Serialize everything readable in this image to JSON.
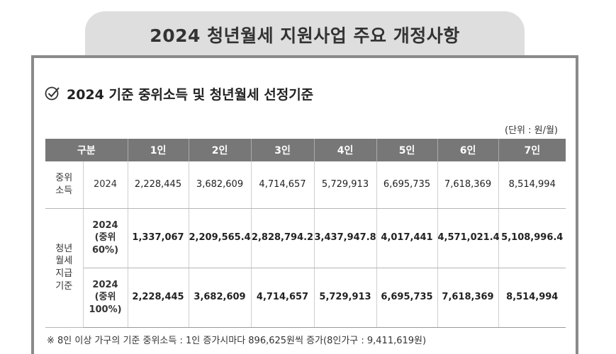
{
  "banner": {
    "title": "2024 청년월세 지원사업 주요 개정사항"
  },
  "section": {
    "icon": "check-circle-icon",
    "title": "2024 기준 중위소득 및 청년월세 선정기준"
  },
  "unit_note": "(단위 : 원/월)",
  "table": {
    "header": {
      "category": "구분",
      "columns": [
        "1인",
        "2인",
        "3인",
        "4인",
        "5인",
        "6인",
        "7인"
      ]
    },
    "income": {
      "label": "중위\n소득",
      "year": "2024",
      "values": [
        "2,228,445",
        "3,682,609",
        "4,714,657",
        "5,729,913",
        "6,695,735",
        "7,618,369",
        "8,514,994"
      ]
    },
    "rent": {
      "label": "청년\n월세\n지급\n기준",
      "rows": [
        {
          "sub": "2024\n(중위\n60%)",
          "values": [
            "1,337,067",
            "2,209,565.4",
            "2,828,794.2",
            "3,437,947.8",
            "4,017,441",
            "4,571,021.4",
            "5,108,996.4"
          ]
        },
        {
          "sub": "2024\n(중위\n100%)",
          "values": [
            "2,228,445",
            "3,682,609",
            "4,714,657",
            "5,729,913",
            "6,695,735",
            "7,618,369",
            "8,514,994"
          ]
        }
      ]
    }
  },
  "footnote": "※ 8인 이상 가구의 기준 중위소득 : 1인 증가시마다 896,625원씩 증가(8인가구 : 9,411,619원)",
  "colors": {
    "header_bg": "#777777",
    "banner_bg": "#dedede",
    "frame_border": "#8a8a8a"
  }
}
